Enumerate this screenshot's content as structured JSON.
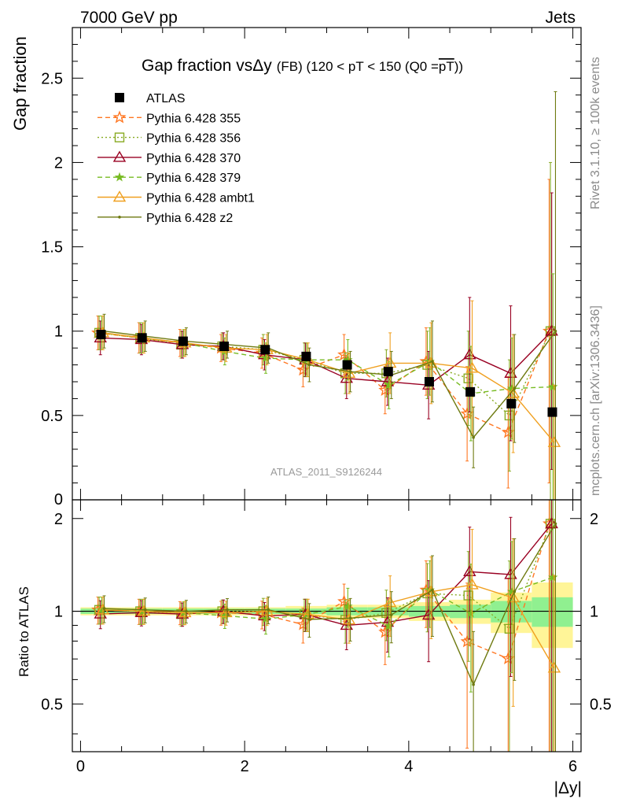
{
  "header": {
    "left": "7000 GeV pp",
    "right": "Jets"
  },
  "side": {
    "rivet": "Rivet 3.1.10, ≥ 100k events",
    "mcplots": "mcplots.cern.ch [arXiv:1306.3436]"
  },
  "chart_data": {
    "type": "line",
    "title": "Gap fraction vsΔy",
    "title_suffix": "(FB) (120 < pT < 150 (Q0 =",
    "title_overline": "pT",
    "title_end": "))",
    "watermark": "ATLAS_2011_S9126244",
    "xlabel": "|Δy|",
    "ylabel": "Gap fraction",
    "ratio_ylabel": "Ratio to ATLAS",
    "xlim": [
      -0.1,
      6.1
    ],
    "ylim": [
      0,
      2.8
    ],
    "ratio_ylim": [
      0.35,
      2.3
    ],
    "x_ticks": [
      "0",
      "2",
      "4",
      "6"
    ],
    "y_ticks": [
      "0.5",
      "1",
      "1.5",
      "2",
      "2.5"
    ],
    "y_zero_label": "0",
    "ratio_ticks_left": [
      "0.5",
      "1",
      "2"
    ],
    "ratio_ticks_right": [
      "0.5",
      "1",
      "2"
    ],
    "x": [
      0.25,
      0.75,
      1.25,
      1.75,
      2.25,
      2.75,
      3.25,
      3.75,
      4.25,
      4.75,
      5.25,
      5.75
    ],
    "data": {
      "name": "ATLAS",
      "values": [
        0.98,
        0.96,
        0.94,
        0.91,
        0.89,
        0.85,
        0.8,
        0.76,
        0.7,
        0.64,
        0.57,
        0.52
      ],
      "color": "#000000"
    },
    "ratio_band": {
      "inner": [
        0.02,
        0.02,
        0.02,
        0.02,
        0.02,
        0.02,
        0.03,
        0.03,
        0.04,
        0.05,
        0.08,
        0.11
      ],
      "outer": [
        0.03,
        0.03,
        0.03,
        0.03,
        0.03,
        0.04,
        0.05,
        0.05,
        0.07,
        0.09,
        0.15,
        0.24
      ],
      "inner_color": "#90f090",
      "outer_color": "#fff598"
    },
    "series": [
      {
        "name": "Pythia 6.428 355",
        "color": "#ff7722",
        "dash": "6,4",
        "marker": "star",
        "values": [
          0.99,
          0.96,
          0.93,
          0.9,
          0.87,
          0.77,
          0.86,
          0.65,
          0.82,
          0.51,
          0.4,
          1.0
        ],
        "err": [
          0.1,
          0.09,
          0.08,
          0.08,
          0.09,
          0.1,
          0.12,
          0.14,
          0.2,
          0.28,
          0.33,
          0.9
        ]
      },
      {
        "name": "Pythia 6.428 356",
        "color": "#88aa22",
        "dash": "2,3",
        "marker": "square",
        "values": [
          0.99,
          0.96,
          0.92,
          0.91,
          0.89,
          0.83,
          0.75,
          0.75,
          0.8,
          0.72,
          0.5,
          1.0
        ],
        "err": [
          0.1,
          0.09,
          0.08,
          0.08,
          0.09,
          0.1,
          0.12,
          0.14,
          0.2,
          0.28,
          0.33,
          1.0
        ]
      },
      {
        "name": "Pythia 6.428 370",
        "color": "#990022",
        "dash": "",
        "marker": "triangle",
        "values": [
          0.96,
          0.95,
          0.92,
          0.91,
          0.86,
          0.83,
          0.72,
          0.7,
          0.68,
          0.86,
          0.75,
          1.0
        ],
        "err": [
          0.1,
          0.09,
          0.08,
          0.08,
          0.09,
          0.1,
          0.12,
          0.14,
          0.2,
          0.34,
          0.4,
          0.82
        ]
      },
      {
        "name": "Pythia 6.428 379",
        "color": "#77bb22",
        "dash": "6,4",
        "marker": "star5",
        "values": [
          0.99,
          0.96,
          0.93,
          0.88,
          0.84,
          0.83,
          0.83,
          0.68,
          0.82,
          0.63,
          0.66,
          0.67
        ],
        "err": [
          0.1,
          0.09,
          0.08,
          0.08,
          0.09,
          0.1,
          0.12,
          0.14,
          0.2,
          0.28,
          0.3,
          0.67
        ]
      },
      {
        "name": "Pythia 6.428 ambt1",
        "color": "#f0a020",
        "dash": "",
        "marker": "triangle",
        "values": [
          0.99,
          0.96,
          0.93,
          0.9,
          0.89,
          0.83,
          0.75,
          0.81,
          0.81,
          0.78,
          0.63,
          0.34
        ],
        "err": [
          0.1,
          0.09,
          0.08,
          0.08,
          0.09,
          0.1,
          0.12,
          0.18,
          0.24,
          0.4,
          0.35,
          0.34
        ]
      },
      {
        "name": "Pythia 6.428 z2",
        "color": "#6e7a10",
        "dash": "",
        "marker": "dot",
        "values": [
          1.0,
          0.97,
          0.94,
          0.92,
          0.9,
          0.8,
          0.76,
          0.74,
          0.82,
          0.37,
          0.66,
          1.0
        ],
        "err": [
          0.1,
          0.09,
          0.08,
          0.08,
          0.09,
          0.1,
          0.12,
          0.14,
          0.24,
          0.18,
          0.32,
          1.42
        ]
      }
    ]
  }
}
